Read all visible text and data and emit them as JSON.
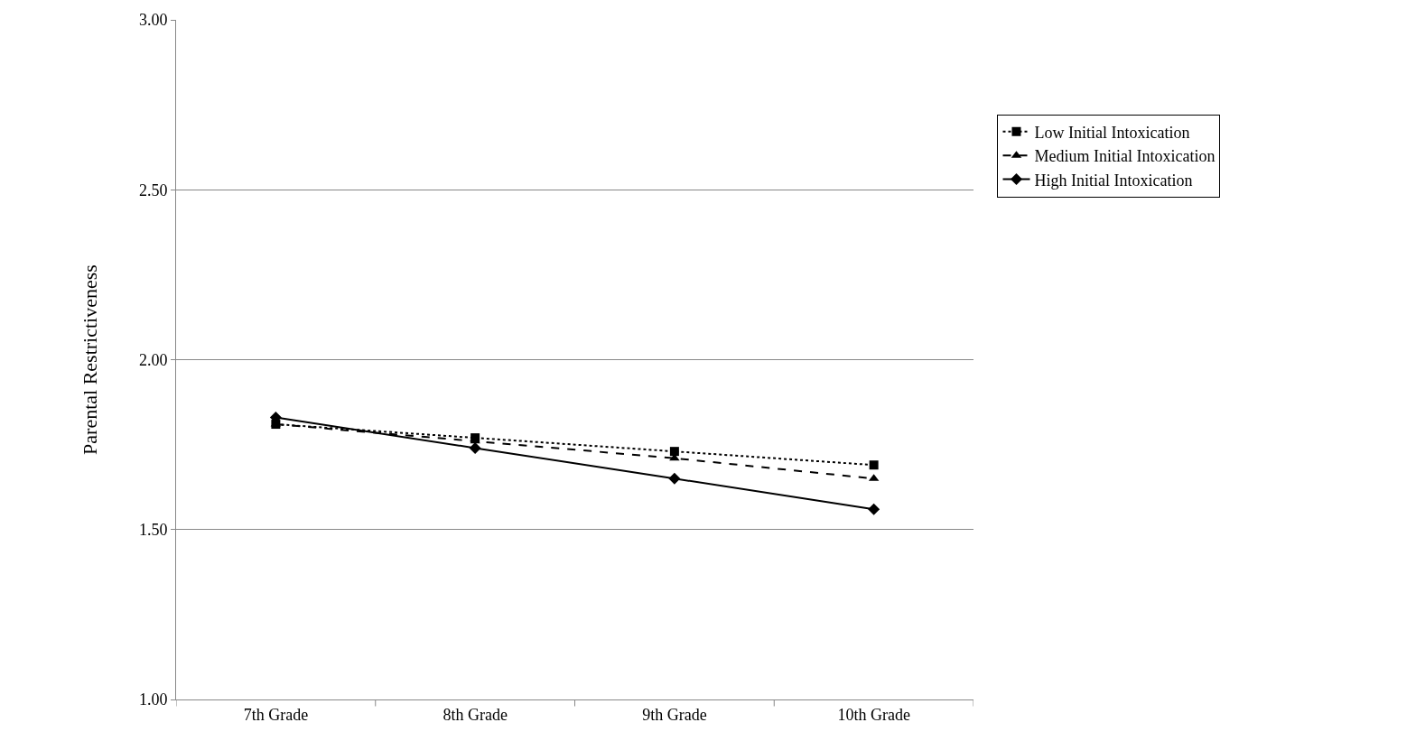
{
  "chart_data": {
    "type": "line",
    "ylabel": "Parental Restrictiveness",
    "categories": [
      "7th Grade",
      "8th Grade",
      "9th Grade",
      "10th Grade"
    ],
    "series": [
      {
        "name": "Low Initial Intoxication",
        "color": "#000000",
        "values": [
          1.81,
          1.77,
          1.73,
          1.69
        ],
        "marker": "square",
        "line_style": "dotted"
      },
      {
        "name": "Medium Initial Intoxication",
        "color": "#000000",
        "values": [
          1.81,
          1.76,
          1.71,
          1.65
        ],
        "marker": "triangle",
        "line_style": "dashed"
      },
      {
        "name": "High Initial Intoxication",
        "color": "#000000",
        "values": [
          1.83,
          1.74,
          1.65,
          1.56
        ],
        "marker": "diamond",
        "line_style": "solid"
      }
    ],
    "ylim": [
      1,
      3
    ],
    "yticks": [
      {
        "value": 1,
        "label": "1.00"
      },
      {
        "value": 1.5,
        "label": "1.50"
      },
      {
        "value": 2,
        "label": "2.00"
      },
      {
        "value": 2.5,
        "label": "2.50"
      },
      {
        "value": 3,
        "label": "3.00"
      }
    ],
    "grid": "y",
    "legend": "right"
  }
}
